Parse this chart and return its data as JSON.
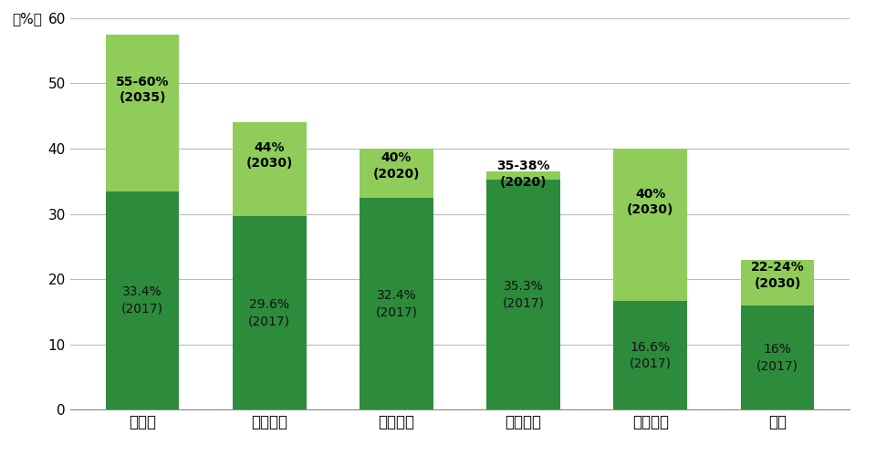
{
  "categories": [
    "ドイツ",
    "イギリス",
    "スペイン",
    "イタリア",
    "フランス",
    "日本"
  ],
  "current_values": [
    33.4,
    29.6,
    32.4,
    35.3,
    16.6,
    16.0
  ],
  "target_values": [
    57.5,
    44.0,
    40.0,
    36.5,
    40.0,
    23.0
  ],
  "current_labels": [
    "33.4%\n(2017)",
    "29.6%\n(2017)",
    "32.4%\n(2017)",
    "35.3%\n(2017)",
    "16.6%\n(2017)",
    "16%\n(2017)"
  ],
  "target_labels": [
    "55-60%\n(2035)",
    "44%\n(2030)",
    "40%\n(2020)",
    "35-38%\n(2020)",
    "40%\n(2030)",
    "22-24%\n(2030)"
  ],
  "current_color": "#2d8b3c",
  "target_color": "#8fcc5a",
  "ylabel": "(%)",
  "ylim": [
    0,
    60
  ],
  "yticks": [
    0,
    10,
    20,
    30,
    40,
    50,
    60
  ],
  "bar_width": 0.58,
  "background_color": "#ffffff",
  "grid_color": "#bbbbbb",
  "current_label_fontsize": 10,
  "target_label_fontsize": 10,
  "tick_fontsize": 11,
  "xticklabel_fontsize": 12
}
